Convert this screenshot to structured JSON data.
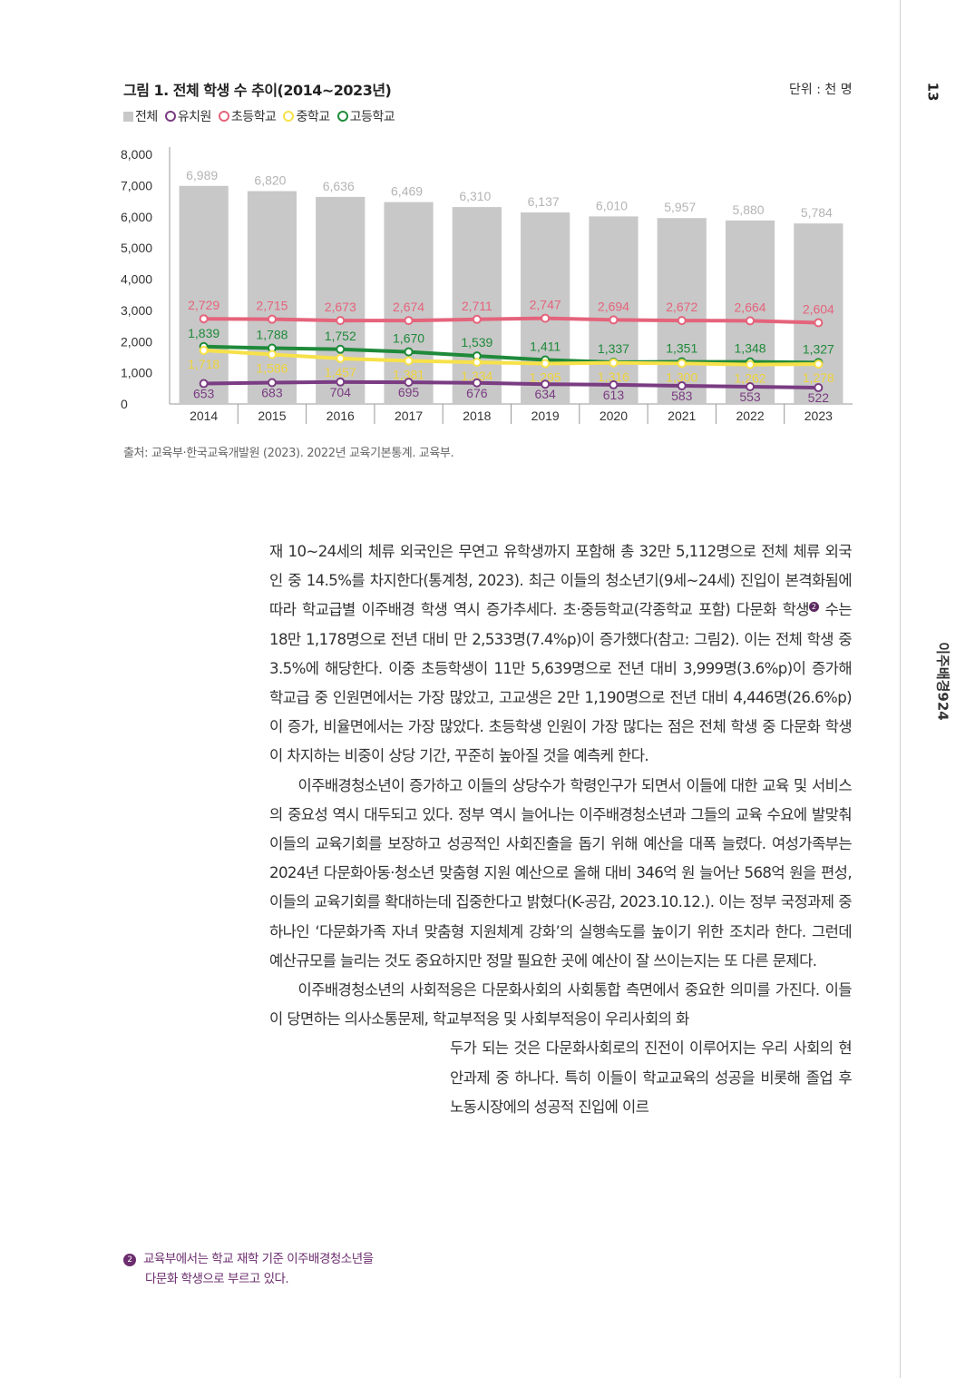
{
  "figure": {
    "title": "그림 1. 전체 학생 수 추이(2014~2023년)",
    "unit": "단위 : 천 명",
    "source": "출처: 교육부·한국교육개발원 (2023). 2022년 교육기본통계. 교육부."
  },
  "chart_data": {
    "type": "bar",
    "categories": [
      "2014",
      "2015",
      "2016",
      "2017",
      "2018",
      "2019",
      "2020",
      "2021",
      "2022",
      "2023"
    ],
    "ylim": [
      0,
      8000
    ],
    "yticks": [
      "8,000",
      "7,000",
      "6,000",
      "5,000",
      "4,000",
      "3,000",
      "2,000",
      "1,000",
      "0"
    ],
    "legend_position": "top-left",
    "series": [
      {
        "name": "전체",
        "kind": "bar",
        "color": "#c8c8c8",
        "label_color": "#b4b4b4",
        "values": [
          6989,
          6820,
          6636,
          6469,
          6310,
          6137,
          6010,
          5957,
          5880,
          5784
        ],
        "labels": [
          "6,989",
          "6,820",
          "6,636",
          "6,469",
          "6,310",
          "6,137",
          "6,010",
          "5,957",
          "5,880",
          "5,784"
        ]
      },
      {
        "name": "유치원",
        "kind": "line",
        "color": "#7a3c82",
        "label_color": "#7a3c82",
        "values": [
          653,
          683,
          704,
          695,
          676,
          634,
          613,
          583,
          553,
          522
        ],
        "labels": [
          "653",
          "683",
          "704",
          "695",
          "676",
          "634",
          "613",
          "583",
          "553",
          "522"
        ]
      },
      {
        "name": "초등학교",
        "kind": "line",
        "color": "#e5637b",
        "label_color": "#e5637b",
        "values": [
          2729,
          2715,
          2673,
          2674,
          2711,
          2747,
          2694,
          2672,
          2664,
          2604
        ],
        "labels": [
          "2,729",
          "2,715",
          "2,673",
          "2,674",
          "2,711",
          "2,747",
          "2,694",
          "2,672",
          "2,664",
          "2,604"
        ]
      },
      {
        "name": "중학교",
        "kind": "line",
        "color": "#f7e14a",
        "label_color": "#f0d43a",
        "values": [
          1718,
          1586,
          1457,
          1381,
          1334,
          1295,
          1316,
          1300,
          1262,
          1278
        ],
        "labels": [
          "1,718",
          "1,586",
          "1,457",
          "1,381",
          "1,334",
          "1,295",
          "1,316",
          "1,300",
          "1,262",
          "1,278"
        ]
      },
      {
        "name": "고등학교",
        "kind": "line",
        "color": "#1f8a3a",
        "label_color": "#1f8a3a",
        "values": [
          1839,
          1788,
          1752,
          1670,
          1539,
          1411,
          1337,
          1351,
          1348,
          1327
        ],
        "labels": [
          "1,839",
          "1,788",
          "1,752",
          "1,670",
          "1,539",
          "1,411",
          "1,337",
          "1,351",
          "1,348",
          "1,327"
        ]
      }
    ]
  },
  "page": {
    "number": "13",
    "section": "이주배경924"
  },
  "body": {
    "p1": "재 10~24세의 체류 외국인은 무연고 유학생까지 포함해 총 32만 5,112명으로 전체 체류 외국인 중 14.5%를 차지한다(통계청, 2023). 최근 이들의 청소년기(9세~24세) 진입이 본격화됨에 따라 학교급별 이주배경 학생 역시 증가추세다. 초·중등학교(각종학교 포함) 다문화 학생",
    "p1_ref": "2",
    "p1b": " 수는 18만 1,178명으로 전년 대비 만 2,533명(7.4%p)이 증가했다(참고: 그림2). 이는 전체 학생 중 3.5%에 해당한다. 이중 초등학생이 11만 5,639명으로 전년 대비 3,999명(3.6%p)이 증가해 학교급 중 인원면에서는 가장 많았고, 고교생은 2만 1,190명으로 전년 대비 4,446명(26.6%p)이 증가, 비율면에서는 가장 많았다. 초등학생 인원이 가장 많다는 점은 전체 학생 중 다문화 학생이 차지하는 비중이 상당 기간, 꾸준히 높아질 것을 예측케 한다.",
    "p2": "이주배경청소년이 증가하고 이들의 상당수가 학령인구가 되면서 이들에 대한 교육 및 서비스의 중요성 역시 대두되고 있다. 정부 역시 늘어나는 이주배경청소년과 그들의 교육 수요에 발맞춰 이들의 교육기회를 보장하고 성공적인 사회진출을 돕기 위해 예산을 대폭 늘렸다. 여성가족부는 2024년 다문화아동·청소년 맞춤형 지원 예산으로 올해 대비 346억 원 늘어난 568억 원을 편성, 이들의 교육기회를 확대하는데 집중한다고 밝혔다(K-공감, 2023.10.12.). 이는 정부 국정과제 중 하나인 ‘다문화가족 자녀 맞춤형 지원체계 강화’의 실행속도를 높이기 위한 조치라 한다. 그런데 예산규모를 늘리는 것도 중요하지만 정말 필요한 곳에 예산이 잘 쓰이는지는 또 다른 문제다.",
    "p3a": "이주배경청소년의 사회적응은 다문화사회의 사회통합 측면에서 중요한 의미를 가진다. 이들이 당면하는 의사소통문제, 학교부적응 및 사회부적응이 우리사회의 화",
    "p3b": "두가 되는 것은 다문화사회로의 진전이 이루어지는 우리 사회의 현안과제 중 하나다. 특히 이들이 학교교육의 성공을 비롯해 졸업 후 노동시장에의 성공적 진입에 이르"
  },
  "footnote": {
    "num": "2",
    "line1": "교육부에서는 학교 재학 기준 이주배경청소년을",
    "line2": "다문화 학생으로 부르고 있다."
  }
}
